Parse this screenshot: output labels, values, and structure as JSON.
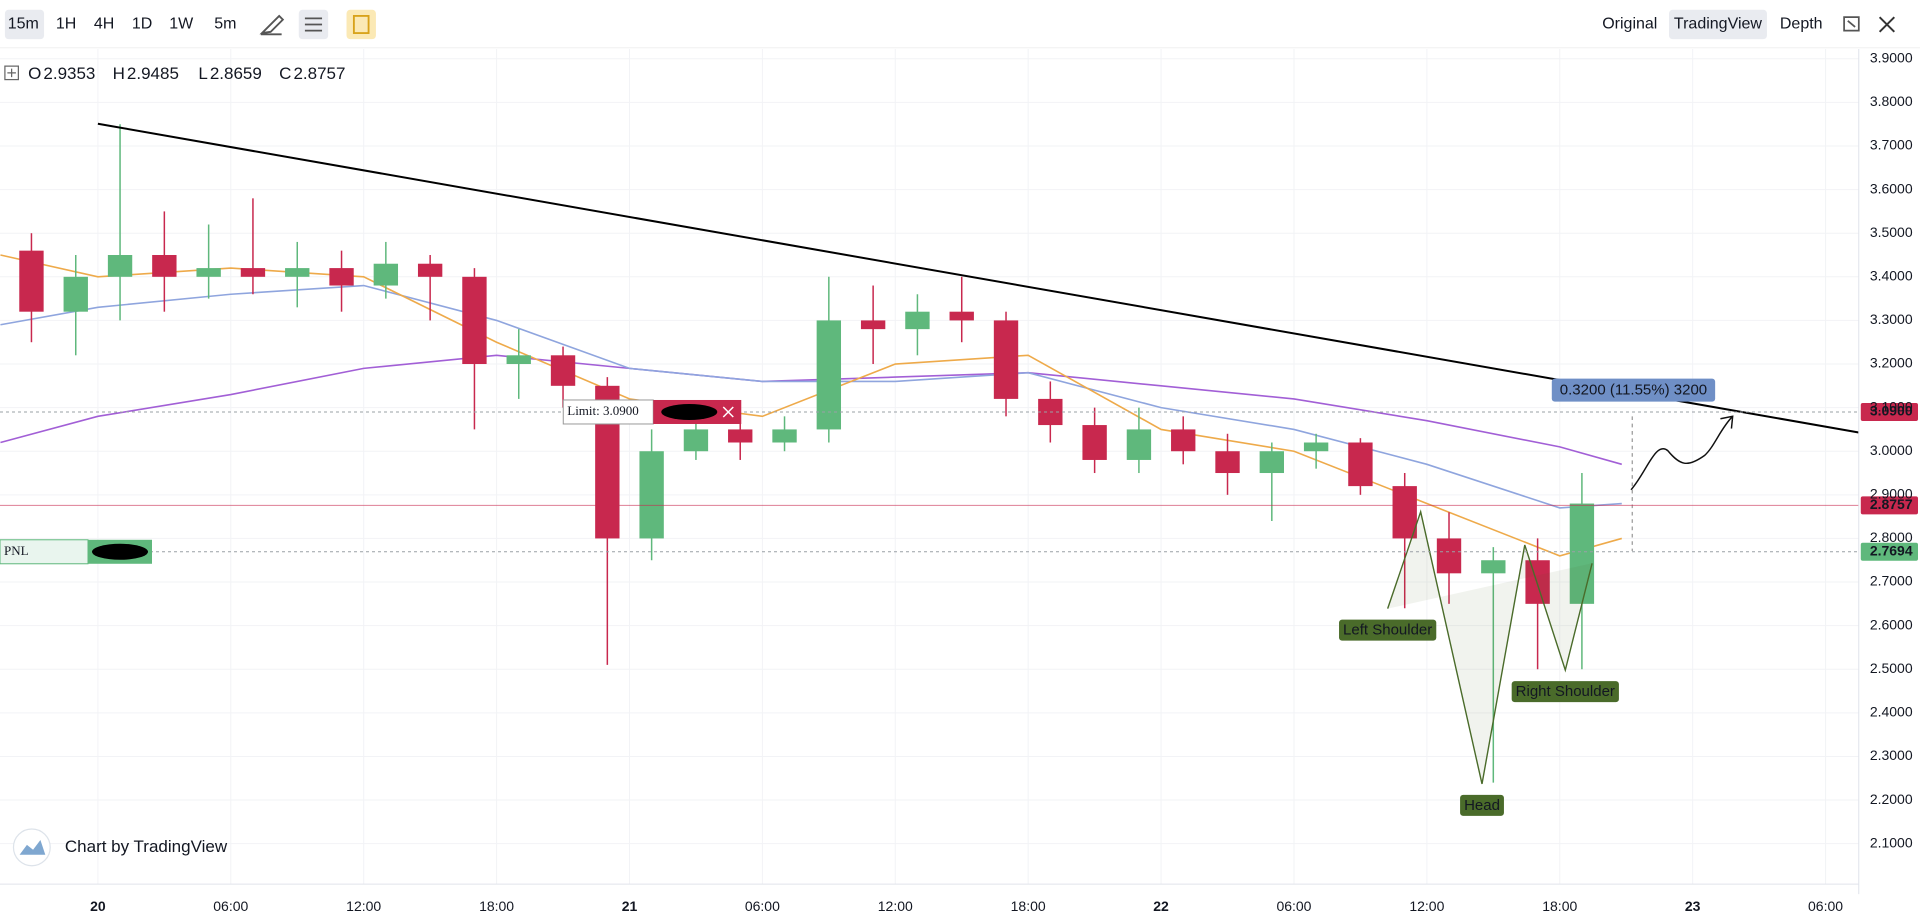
{
  "toolbar": {
    "intervals": [
      "15m",
      "1H",
      "4H",
      "1D",
      "1W",
      "5m"
    ],
    "views": [
      "Original",
      "TradingView",
      "Depth"
    ]
  },
  "chart_data": {
    "type": "candlestick",
    "watermark": "Chart by TradingView",
    "header": [
      {
        "label": "O",
        "value": 2.9353
      },
      {
        "label": "H",
        "value": 2.9485
      },
      {
        "label": "L",
        "value": 2.8659
      },
      {
        "label": "C",
        "value": 2.8757
      }
    ],
    "x": [
      -3,
      -1,
      1,
      3,
      5,
      7,
      9,
      11,
      13,
      15,
      17,
      19,
      21,
      23,
      25,
      27,
      29,
      31,
      33,
      35,
      37,
      39,
      41,
      43,
      45,
      47,
      49,
      51,
      53,
      55,
      57,
      59,
      61,
      63,
      65,
      67
    ],
    "open": [
      3.46,
      3.32,
      3.4,
      3.45,
      3.4,
      3.42,
      3.4,
      3.42,
      3.38,
      3.43,
      3.4,
      3.2,
      3.22,
      3.15,
      2.8,
      3.0,
      3.05,
      3.02,
      3.05,
      3.3,
      3.28,
      3.32,
      3.3,
      3.12,
      3.06,
      2.98,
      3.05,
      3.0,
      2.95,
      3.0,
      3.02,
      2.92,
      2.8,
      2.72,
      2.75,
      2.65
    ],
    "high": [
      3.5,
      3.45,
      3.75,
      3.55,
      3.52,
      3.58,
      3.48,
      3.46,
      3.48,
      3.45,
      3.42,
      3.28,
      3.24,
      3.17,
      3.05,
      3.1,
      3.1,
      3.08,
      3.4,
      3.38,
      3.36,
      3.4,
      3.32,
      3.16,
      3.1,
      3.1,
      3.08,
      3.04,
      3.02,
      3.04,
      3.03,
      2.95,
      2.86,
      2.78,
      2.8,
      2.95
    ],
    "low": [
      3.25,
      3.22,
      3.3,
      3.32,
      3.35,
      3.36,
      3.33,
      3.32,
      3.35,
      3.3,
      3.05,
      3.12,
      3.1,
      2.51,
      2.75,
      2.98,
      2.98,
      3.0,
      3.02,
      3.2,
      3.22,
      3.25,
      3.08,
      3.02,
      2.95,
      2.95,
      2.97,
      2.9,
      2.84,
      2.96,
      2.9,
      2.64,
      2.65,
      2.24,
      2.5,
      2.5
    ],
    "close": [
      3.32,
      3.4,
      3.45,
      3.4,
      3.42,
      3.4,
      3.42,
      3.38,
      3.43,
      3.4,
      3.2,
      3.22,
      3.15,
      2.8,
      3.0,
      3.05,
      3.02,
      3.05,
      3.3,
      3.28,
      3.32,
      3.3,
      3.12,
      3.06,
      2.98,
      3.05,
      3.0,
      2.95,
      3.0,
      3.02,
      2.92,
      2.8,
      2.72,
      2.75,
      2.65,
      2.88
    ],
    "up_color": "#5fb87c",
    "down_color": "#c8284e",
    "mas": [
      {
        "color": "#a25fd6",
        "x": [
          -4.4,
          0,
          6,
          12,
          18,
          24,
          30,
          36,
          42,
          48,
          54,
          60,
          66,
          68.8
        ],
        "values": [
          3.02,
          3.08,
          3.13,
          3.19,
          3.22,
          3.19,
          3.16,
          3.17,
          3.18,
          3.15,
          3.12,
          3.07,
          3.01,
          2.97
        ]
      },
      {
        "color": "#8fa5de",
        "x": [
          -4.4,
          0,
          6,
          12,
          18,
          24,
          30,
          36,
          42,
          48,
          54,
          60,
          66,
          68.8
        ],
        "values": [
          3.29,
          3.33,
          3.36,
          3.38,
          3.3,
          3.19,
          3.16,
          3.16,
          3.18,
          3.1,
          3.05,
          2.97,
          2.87,
          2.88
        ]
      },
      {
        "color": "#eeaa4a",
        "x": [
          -4.4,
          0,
          6,
          12,
          18,
          24,
          30,
          36,
          42,
          48,
          54,
          60,
          66,
          68.8
        ],
        "values": [
          3.45,
          3.4,
          3.42,
          3.4,
          3.25,
          3.12,
          3.08,
          3.2,
          3.22,
          3.05,
          3.0,
          2.88,
          2.76,
          2.8
        ]
      }
    ],
    "trendline": {
      "color": "#000000",
      "x": [
        0,
        79.5
      ],
      "y": [
        3.751,
        3.043
      ]
    },
    "pattern": {
      "color": "#4a6b2a",
      "x": [
        58.23,
        59.72,
        62.49,
        64.42,
        66.25,
        67.46
      ],
      "y": [
        2.639,
        2.861,
        2.237,
        2.785,
        2.498,
        2.743
      ],
      "labels": [
        "Left Shoulder",
        null,
        "Head",
        null,
        "Right Shoulder",
        null
      ]
    },
    "price_lines": [
      {
        "value": 3.09,
        "label": "3.0900",
        "color": "#c8284e",
        "dash": true,
        "note": "Limit: 3.0900"
      },
      {
        "value": 2.8757,
        "color": "#c8284e",
        "dash": false
      },
      {
        "value": 2.7694,
        "color": "#5fb87c",
        "dash": true,
        "note": "PNL"
      }
    ],
    "measure": "0.3200 (11.55%) 3200",
    "xlim": [
      -4.42,
      79.5
    ],
    "ylim": [
      2.0073,
      3.9225
    ],
    "grid": true,
    "xticks": [
      {
        "value": 0,
        "label": "20"
      },
      {
        "value": 6,
        "label": "06:00"
      },
      {
        "value": 12,
        "label": "12:00"
      },
      {
        "value": 18,
        "label": "18:00"
      },
      {
        "value": 24,
        "label": "21"
      },
      {
        "value": 30,
        "label": "06:00"
      },
      {
        "value": 36,
        "label": "12:00"
      },
      {
        "value": 42,
        "label": "18:00"
      },
      {
        "value": 48,
        "label": "22"
      },
      {
        "value": 54,
        "label": "06:00"
      },
      {
        "value": 60,
        "label": "12:00"
      },
      {
        "value": 66,
        "label": "18:00"
      },
      {
        "value": 72,
        "label": "23"
      },
      {
        "value": 78,
        "label": "06:00"
      }
    ],
    "yticks": [
      {
        "value": 2.1,
        "label": "2.1000"
      },
      {
        "value": 2.2,
        "label": "2.2000"
      },
      {
        "value": 2.3,
        "label": "2.3000"
      },
      {
        "value": 2.4,
        "label": "2.4000"
      },
      {
        "value": 2.5,
        "label": "2.5000"
      },
      {
        "value": 2.6,
        "label": "2.6000"
      },
      {
        "value": 2.7,
        "label": "2.7000"
      },
      {
        "value": 2.8,
        "label": "2.8000"
      },
      {
        "value": 2.9,
        "label": "2.9000"
      },
      {
        "value": 3.0,
        "label": "3.0000"
      },
      {
        "value": 3.1,
        "label": "3.1000"
      },
      {
        "value": 3.2,
        "label": "3.2000"
      },
      {
        "value": 3.3,
        "label": "3.3000"
      },
      {
        "value": 3.4,
        "label": "3.4000"
      },
      {
        "value": 3.5,
        "label": "3.5000"
      },
      {
        "value": 3.6,
        "label": "3.6000"
      },
      {
        "value": 3.7,
        "label": "3.7000"
      },
      {
        "value": 3.8,
        "label": "3.8000"
      },
      {
        "value": 3.9,
        "label": "3.9000"
      }
    ]
  }
}
